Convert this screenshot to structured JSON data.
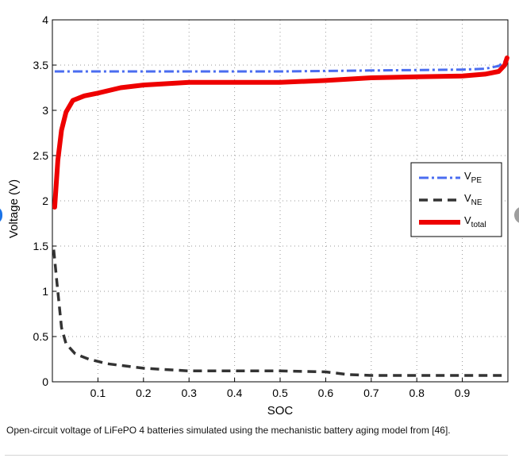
{
  "chart_data": {
    "type": "line",
    "title": "",
    "xlabel": "SOC",
    "ylabel": "Voltage (V)",
    "xlim": [
      0,
      1
    ],
    "ylim": [
      0,
      4
    ],
    "xticks": [
      0.1,
      0.2,
      0.3,
      0.4,
      0.5,
      0.6,
      0.7,
      0.8,
      0.9
    ],
    "xtick_labels": [
      "0.1",
      "0.2",
      "0.3",
      "0.4",
      "0.5",
      "0.6",
      "0.7",
      "0.8",
      "0.9"
    ],
    "yticks": [
      0,
      0.5,
      1,
      1.5,
      2,
      2.5,
      3,
      3.5,
      4
    ],
    "ytick_labels": [
      "0",
      "0.5",
      "1",
      "1.5",
      "2",
      "2.5",
      "3",
      "3.5",
      "4"
    ],
    "grid": true,
    "legend_position": "right",
    "series": [
      {
        "name": "V_PE",
        "label_main": "V",
        "label_sub": "PE",
        "color": "#4a6cf0",
        "style": "dashdot",
        "points": [
          [
            0.005,
            3.43
          ],
          [
            0.1,
            3.43
          ],
          [
            0.3,
            3.43
          ],
          [
            0.5,
            3.43
          ],
          [
            0.7,
            3.44
          ],
          [
            0.9,
            3.45
          ],
          [
            0.95,
            3.46
          ],
          [
            0.98,
            3.49
          ],
          [
            0.995,
            3.55
          ]
        ]
      },
      {
        "name": "V_NE",
        "label_main": "V",
        "label_sub": "NE",
        "color": "#333333",
        "style": "dashed",
        "points": [
          [
            0.003,
            1.46
          ],
          [
            0.01,
            1.1
          ],
          [
            0.02,
            0.6
          ],
          [
            0.03,
            0.42
          ],
          [
            0.05,
            0.31
          ],
          [
            0.08,
            0.25
          ],
          [
            0.12,
            0.2
          ],
          [
            0.2,
            0.15
          ],
          [
            0.3,
            0.12
          ],
          [
            0.4,
            0.12
          ],
          [
            0.5,
            0.12
          ],
          [
            0.6,
            0.11
          ],
          [
            0.65,
            0.08
          ],
          [
            0.7,
            0.07
          ],
          [
            0.8,
            0.07
          ],
          [
            0.9,
            0.07
          ],
          [
            0.99,
            0.07
          ]
        ]
      },
      {
        "name": "V_total",
        "label_main": "V",
        "label_sub": "total",
        "color": "#ee0000",
        "style": "solid",
        "points": [
          [
            0.005,
            1.93
          ],
          [
            0.008,
            2.15
          ],
          [
            0.012,
            2.45
          ],
          [
            0.02,
            2.78
          ],
          [
            0.03,
            2.98
          ],
          [
            0.045,
            3.11
          ],
          [
            0.07,
            3.16
          ],
          [
            0.1,
            3.19
          ],
          [
            0.15,
            3.25
          ],
          [
            0.2,
            3.28
          ],
          [
            0.3,
            3.31
          ],
          [
            0.4,
            3.31
          ],
          [
            0.5,
            3.31
          ],
          [
            0.6,
            3.33
          ],
          [
            0.7,
            3.36
          ],
          [
            0.8,
            3.37
          ],
          [
            0.9,
            3.38
          ],
          [
            0.95,
            3.4
          ],
          [
            0.98,
            3.43
          ],
          [
            0.993,
            3.5
          ],
          [
            0.998,
            3.58
          ]
        ]
      }
    ]
  },
  "caption": "Open-circuit voltage of LiFePO 4 batteries simulated using the mechanistic battery aging model from [46]."
}
